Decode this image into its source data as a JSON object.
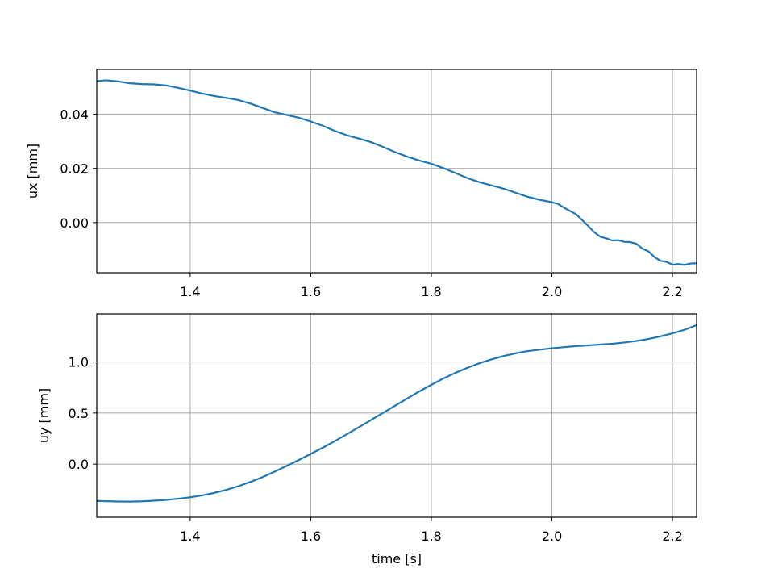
{
  "chart_data": [
    {
      "type": "line",
      "xlabel": "",
      "ylabel": "ux [mm]",
      "xlim": [
        1.245,
        2.24
      ],
      "ylim": [
        -0.0185,
        0.0565
      ],
      "xticks": [
        1.4,
        1.6,
        1.8,
        2.0,
        2.2
      ],
      "xtick_labels": [
        "1.4",
        "1.6",
        "1.8",
        "2.0",
        "2.2"
      ],
      "yticks": [
        0.0,
        0.02,
        0.04
      ],
      "ytick_labels": [
        "0.00",
        "0.02",
        "0.04"
      ],
      "grid": true,
      "color": "#1f77b4",
      "series": [
        {
          "x": [
            1.245,
            1.26,
            1.28,
            1.3,
            1.32,
            1.34,
            1.36,
            1.38,
            1.4,
            1.42,
            1.44,
            1.46,
            1.48,
            1.5,
            1.52,
            1.54,
            1.56,
            1.58,
            1.6,
            1.62,
            1.64,
            1.66,
            1.68,
            1.7,
            1.72,
            1.74,
            1.76,
            1.78,
            1.8,
            1.82,
            1.84,
            1.86,
            1.88,
            1.9,
            1.92,
            1.94,
            1.96,
            1.98,
            2.0,
            2.01,
            2.02,
            2.04,
            2.06,
            2.07,
            2.08,
            2.09,
            2.1,
            2.11,
            2.12,
            2.13,
            2.14,
            2.15,
            2.16,
            2.17,
            2.18,
            2.19,
            2.2,
            2.21,
            2.22,
            2.23,
            2.24
          ],
          "y": [
            0.0522,
            0.0525,
            0.0521,
            0.0514,
            0.0511,
            0.051,
            0.0506,
            0.0497,
            0.0487,
            0.0476,
            0.0467,
            0.046,
            0.0452,
            0.0439,
            0.0423,
            0.0407,
            0.0397,
            0.0387,
            0.0373,
            0.0357,
            0.0338,
            0.0322,
            0.031,
            0.0297,
            0.0279,
            0.026,
            0.0243,
            0.0229,
            0.0217,
            0.0201,
            0.0183,
            0.0164,
            0.0149,
            0.0137,
            0.0125,
            0.011,
            0.0095,
            0.0084,
            0.0075,
            0.0069,
            0.0055,
            0.0031,
            -0.0012,
            -0.0035,
            -0.0052,
            -0.0058,
            -0.0066,
            -0.0065,
            -0.0071,
            -0.0072,
            -0.0078,
            -0.0096,
            -0.0106,
            -0.0127,
            -0.0141,
            -0.0145,
            -0.0155,
            -0.0153,
            -0.0156,
            -0.0151,
            -0.015
          ]
        }
      ]
    },
    {
      "type": "line",
      "xlabel": "time [s]",
      "ylabel": "uy [mm]",
      "xlim": [
        1.245,
        2.24
      ],
      "ylim": [
        -0.52,
        1.47
      ],
      "xticks": [
        1.4,
        1.6,
        1.8,
        2.0,
        2.2
      ],
      "xtick_labels": [
        "1.4",
        "1.6",
        "1.8",
        "2.0",
        "2.2"
      ],
      "yticks": [
        0.0,
        0.5,
        1.0
      ],
      "ytick_labels": [
        "0.0",
        "0.5",
        "1.0"
      ],
      "grid": true,
      "color": "#1f77b4",
      "series": [
        {
          "x": [
            1.245,
            1.26,
            1.28,
            1.3,
            1.32,
            1.34,
            1.36,
            1.38,
            1.4,
            1.42,
            1.44,
            1.46,
            1.48,
            1.5,
            1.52,
            1.54,
            1.56,
            1.58,
            1.6,
            1.62,
            1.64,
            1.66,
            1.68,
            1.7,
            1.72,
            1.74,
            1.76,
            1.78,
            1.8,
            1.82,
            1.84,
            1.86,
            1.88,
            1.9,
            1.92,
            1.94,
            1.96,
            1.98,
            2.0,
            2.02,
            2.04,
            2.06,
            2.08,
            2.1,
            2.12,
            2.14,
            2.16,
            2.18,
            2.2,
            2.22,
            2.24
          ],
          "y": [
            -0.36,
            -0.363,
            -0.366,
            -0.367,
            -0.364,
            -0.358,
            -0.35,
            -0.339,
            -0.325,
            -0.306,
            -0.282,
            -0.252,
            -0.216,
            -0.174,
            -0.127,
            -0.074,
            -0.018,
            0.04,
            0.1,
            0.161,
            0.226,
            0.293,
            0.362,
            0.432,
            0.502,
            0.572,
            0.642,
            0.711,
            0.776,
            0.838,
            0.894,
            0.943,
            0.988,
            1.025,
            1.058,
            1.085,
            1.106,
            1.12,
            1.134,
            1.145,
            1.155,
            1.162,
            1.17,
            1.178,
            1.19,
            1.205,
            1.225,
            1.25,
            1.28,
            1.315,
            1.36
          ]
        }
      ]
    }
  ]
}
